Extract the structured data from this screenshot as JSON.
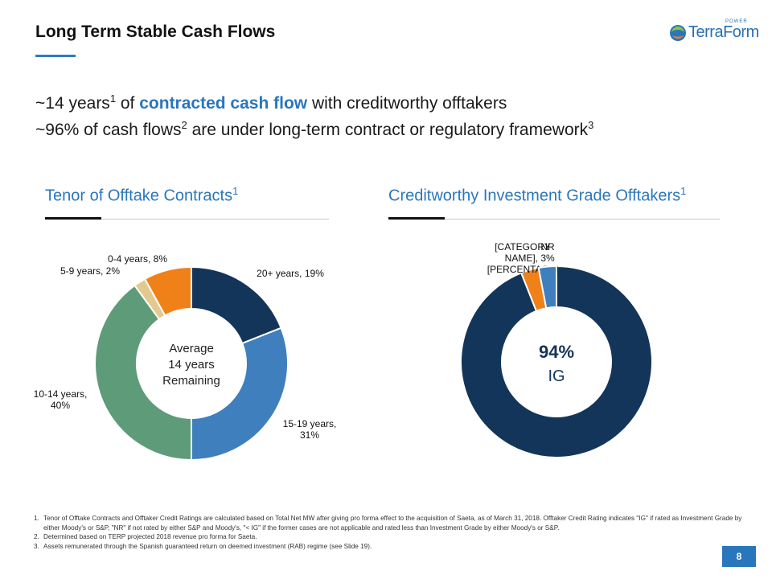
{
  "title": "Long Term Stable Cash Flows",
  "logo": {
    "text": "TerraForm",
    "superscript": "POWER"
  },
  "headline1": {
    "prefix": "~14 years",
    "sup": "1",
    "middle": " of ",
    "accent": "contracted cash flow",
    "suffix": " with creditworthy offtakers"
  },
  "headline2": {
    "prefix": "~96% of cash flows",
    "sup1": "2",
    "middle": " are under long-term contract or regulatory framework",
    "sup2": "3"
  },
  "left_section": {
    "title": "Tenor of Offtake Contracts",
    "sup": "1"
  },
  "right_section": {
    "title": "Creditworthy Investment Grade Offtakers",
    "sup": "1"
  },
  "colors": {
    "navy": "#14355a",
    "blue": "#3f7fbd",
    "green": "#5e9b78",
    "tan": "#e3c98f",
    "orange": "#f08018",
    "accent": "#2a76bd"
  },
  "chart_data": [
    {
      "type": "pie",
      "variant": "donut",
      "slices": [
        {
          "label": "20+ years",
          "value": 19,
          "color": "#14355a",
          "data_label": [
            "20+ years, 19%"
          ]
        },
        {
          "label": "15-19 years",
          "value": 31,
          "color": "#3f7fbd",
          "data_label": [
            "15-19 years,",
            "31%"
          ]
        },
        {
          "label": "10-14 years",
          "value": 40,
          "color": "#5e9b78",
          "data_label": [
            "10-14 years,",
            "40%"
          ]
        },
        {
          "label": "5-9 years",
          "value": 2,
          "color": "#e3c98f",
          "data_label": [
            "5-9 years, 2%"
          ]
        },
        {
          "label": "0-4 years",
          "value": 8,
          "color": "#f08018",
          "data_label": [
            "0-4 years, 8%"
          ]
        }
      ],
      "center_text": [
        "Average",
        "14 years",
        "Remaining"
      ]
    },
    {
      "type": "pie",
      "variant": "donut",
      "slices": [
        {
          "label": "IG",
          "value": 94,
          "color": "#14355a",
          "data_label": []
        },
        {
          "label": "[CATEGORY NAME]",
          "value": 3,
          "color": "#f08018",
          "data_label": [
            "[CATEGORY",
            "NAME], ",
            "[PERCENTAGE]"
          ]
        },
        {
          "label": "NR",
          "value": 3,
          "color": "#3f7fbd",
          "data_label": [
            "NR",
            "3%"
          ]
        }
      ],
      "center_text": [
        "94%",
        "IG"
      ]
    }
  ],
  "footnotes": [
    {
      "num": "1.",
      "text": "Tenor of Offtake Contracts and Offtaker Credit Ratings are calculated based on Total Net MW after giving pro forma effect to the acquisition of Saeta, as of March 31, 2018. Offtaker Credit Rating indicates \"IG\" if rated as Investment Grade by either Moody's or S&P, \"NR\" if not rated by either S&P and Moody's, \"< IG\" if the former cases are not applicable and rated less than Investment Grade by either Moody's or S&P."
    },
    {
      "num": "2.",
      "text": "Determined based on TERP projected 2018 revenue pro forma for Saeta."
    },
    {
      "num": "3.",
      "text": "Assets remunerated through the Spanish guaranteed return on deemed investment (RAB) regime (see Slide 19)."
    }
  ],
  "page_number": "8"
}
